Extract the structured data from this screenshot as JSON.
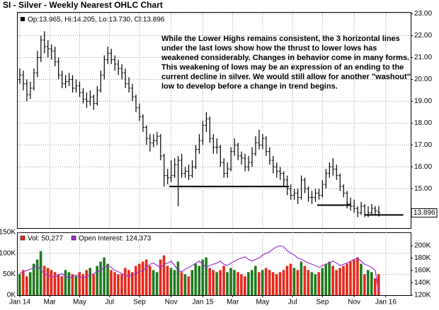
{
  "chart_data": [
    {
      "type": "ohlc",
      "title": "SI - Silver - Weekly Nearest OHLC Chart",
      "info": "Op:13.965, Hi:14.205, Lo:13.730, Cl:13.896",
      "color": "#000000",
      "open": [
        20.0,
        20.2,
        19.8,
        19.3,
        19.6,
        20.3,
        21.0,
        21.8,
        21.5,
        21.4,
        21.3,
        20.8,
        20.2,
        19.8,
        19.9,
        20.0,
        19.6,
        19.7,
        19.4,
        19.1,
        19.0,
        19.2,
        18.9,
        19.5,
        20.2,
        20.9,
        21.2,
        20.9,
        20.7,
        20.5,
        20.3,
        19.8,
        19.6,
        19.2,
        18.7,
        18.3,
        17.8,
        17.3,
        17.1,
        17.2,
        17.4,
        16.5,
        15.6,
        15.5,
        15.6,
        16.1,
        16.3,
        15.7,
        15.8,
        15.6,
        16.0,
        16.8,
        17.2,
        17.9,
        18.2,
        17.3,
        16.9,
        16.9,
        16.2,
        15.7,
        15.9,
        16.7,
        17.0,
        16.5,
        16.4,
        16.0,
        16.2,
        16.6,
        17.1,
        17.0,
        17.3,
        16.7,
        16.3,
        16.0,
        15.8,
        15.7,
        15.4,
        15.0,
        14.7,
        14.8,
        14.6,
        15.4,
        15.0,
        14.6,
        14.6,
        14.8,
        14.7,
        15.2,
        15.7,
        16.0,
        15.9,
        15.6,
        15.1,
        14.8,
        14.3,
        14.2,
        14.1,
        13.9,
        14.2,
        13.8,
        13.9,
        14.1,
        13.965
      ],
      "high": [
        20.5,
        20.4,
        20.0,
        19.9,
        20.5,
        21.3,
        22.0,
        22.2,
        21.8,
        21.6,
        21.5,
        21.0,
        20.4,
        20.2,
        20.3,
        20.2,
        20.0,
        19.9,
        19.6,
        19.4,
        19.5,
        19.3,
        19.7,
        20.4,
        21.1,
        21.5,
        21.4,
        21.1,
        20.9,
        20.7,
        20.5,
        20.1,
        19.8,
        19.3,
        18.9,
        18.4,
        17.9,
        17.5,
        17.5,
        17.6,
        17.5,
        16.6,
        15.9,
        16.3,
        16.4,
        16.5,
        16.6,
        16.0,
        16.1,
        16.3,
        17.0,
        17.5,
        18.1,
        18.5,
        18.3,
        17.5,
        17.3,
        17.0,
        16.4,
        16.2,
        16.9,
        17.3,
        17.1,
        16.7,
        16.6,
        16.5,
        16.9,
        17.4,
        17.7,
        17.5,
        17.4,
        16.9,
        16.5,
        16.2,
        16.0,
        15.8,
        15.6,
        15.2,
        15.0,
        15.0,
        15.6,
        15.5,
        15.1,
        14.9,
        15.0,
        15.0,
        15.4,
        15.9,
        16.2,
        16.4,
        16.1,
        15.7,
        15.2,
        14.9,
        14.6,
        14.5,
        14.2,
        14.4,
        14.3,
        14.2,
        14.3,
        14.2,
        14.205
      ],
      "low": [
        19.8,
        19.5,
        19.0,
        19.1,
        19.5,
        20.1,
        20.8,
        21.2,
        21.0,
        20.9,
        20.6,
        20.0,
        19.6,
        19.6,
        19.7,
        19.4,
        19.4,
        19.2,
        18.9,
        18.7,
        18.8,
        18.6,
        18.8,
        19.4,
        20.0,
        20.7,
        20.7,
        20.4,
        20.2,
        20.0,
        19.6,
        19.4,
        19.0,
        18.5,
        18.1,
        17.6,
        17.0,
        16.7,
        16.9,
        17.0,
        16.3,
        15.1,
        15.2,
        15.3,
        15.5,
        14.2,
        15.5,
        15.5,
        15.4,
        15.5,
        15.9,
        16.6,
        17.0,
        17.6,
        17.1,
        16.6,
        16.6,
        16.0,
        15.5,
        15.5,
        15.8,
        16.5,
        16.3,
        16.1,
        15.8,
        15.8,
        16.0,
        16.5,
        16.8,
        16.8,
        16.5,
        16.1,
        15.7,
        15.5,
        15.4,
        15.1,
        14.7,
        14.5,
        14.5,
        14.3,
        14.5,
        14.8,
        14.4,
        14.3,
        14.4,
        14.5,
        14.6,
        15.0,
        15.5,
        15.6,
        15.4,
        14.9,
        14.6,
        14.1,
        14.0,
        13.9,
        13.7,
        13.8,
        13.7,
        13.7,
        13.8,
        13.8,
        13.73
      ],
      "close": [
        20.2,
        19.8,
        19.3,
        19.6,
        20.3,
        21.0,
        21.8,
        21.5,
        21.4,
        21.3,
        20.8,
        20.2,
        19.8,
        19.9,
        20.0,
        19.6,
        19.7,
        19.4,
        19.1,
        19.0,
        19.2,
        18.9,
        19.5,
        20.2,
        20.9,
        21.2,
        20.9,
        20.7,
        20.5,
        20.3,
        19.8,
        19.6,
        19.2,
        18.7,
        18.3,
        17.8,
        17.3,
        17.1,
        17.2,
        17.4,
        16.5,
        15.6,
        15.5,
        15.6,
        16.1,
        16.3,
        15.7,
        15.8,
        15.6,
        16.0,
        16.8,
        17.2,
        17.9,
        18.2,
        17.3,
        16.9,
        16.9,
        16.2,
        15.7,
        15.9,
        16.7,
        17.0,
        16.5,
        16.4,
        16.0,
        16.2,
        16.6,
        17.1,
        17.0,
        17.3,
        16.7,
        16.3,
        16.0,
        15.8,
        15.7,
        15.4,
        15.0,
        14.7,
        14.8,
        14.6,
        15.4,
        15.0,
        14.6,
        14.6,
        14.8,
        14.7,
        15.2,
        15.7,
        16.0,
        15.9,
        15.6,
        15.1,
        14.8,
        14.3,
        14.2,
        14.1,
        13.9,
        14.2,
        13.8,
        13.9,
        14.1,
        14.0,
        13.896
      ],
      "last_price": 13.896,
      "support_lines": [
        {
          "value": 15.1,
          "start": 42.5,
          "end": 76.5
        },
        {
          "value": 14.25,
          "start": 84.5,
          "end": 94
        },
        {
          "value": 13.8,
          "start": 98,
          "end": 109
        }
      ],
      "annotation": [
        "While the Lower Highs remains consistent, the 3 horizontal lines",
        "under the last lows show how the thrust to lower lows has",
        "weakened considerably.  Changes in behavior come in many forms.",
        "This weakening of lows may be an expression of an ending to the",
        "current decline in silver.  We would still allow for another \"washout\"",
        "low to develop before a change in trend begins."
      ],
      "ylim": [
        13.2,
        23.05
      ],
      "yticks": [
        {
          "value": 15,
          "label": "15.00"
        },
        {
          "value": 16,
          "label": "16.00"
        },
        {
          "value": 17,
          "label": "17.00"
        },
        {
          "value": 18,
          "label": "18.00"
        },
        {
          "value": 19,
          "label": "19.00"
        },
        {
          "value": 20,
          "label": "20.00"
        },
        {
          "value": 21,
          "label": "21.00"
        },
        {
          "value": 22,
          "label": "22.00"
        },
        {
          "value": 23,
          "label": "23.00"
        }
      ],
      "grid": true
    },
    {
      "type": "volume",
      "series": [
        {
          "name": "Vol",
          "legend_label": "Vol: 50,277",
          "color": "#e8281c",
          "up_color": "#1f7a1f",
          "values": [
            50000,
            60000,
            45000,
            55000,
            75000,
            85000,
            105000,
            70000,
            65000,
            60000,
            55000,
            50000,
            45000,
            60000,
            55000,
            50000,
            45000,
            55000,
            50000,
            60000,
            65000,
            50000,
            70000,
            80000,
            90000,
            75000,
            60000,
            55000,
            50000,
            50000,
            65000,
            60000,
            55000,
            70000,
            75000,
            80000,
            85000,
            70000,
            60000,
            55000,
            85000,
            95000,
            70000,
            65000,
            60000,
            80000,
            55000,
            50000,
            45000,
            60000,
            75000,
            70000,
            85000,
            90000,
            65000,
            60000,
            55000,
            60000,
            70000,
            55000,
            65000,
            60000,
            55000,
            50000,
            45000,
            55000,
            60000,
            70000,
            55000,
            60000,
            65000,
            60000,
            55000,
            50000,
            55000,
            60000,
            70000,
            75000,
            65000,
            60000,
            80000,
            70000,
            60000,
            55000,
            50000,
            55000,
            65000,
            75000,
            80000,
            70000,
            60000,
            65000,
            70000,
            75000,
            80000,
            85000,
            90000,
            75000,
            50000,
            60000,
            55000,
            40000,
            50277
          ]
        },
        {
          "name": "Open Interest",
          "legend_label": "Open Interest: 124,373",
          "color": "#9b30d9",
          "axis": "y2",
          "values": [
            155000,
            158000,
            160000,
            162000,
            165000,
            168000,
            160000,
            155000,
            152000,
            150000,
            150000,
            152000,
            155000,
            150000,
            148000,
            150000,
            152000,
            150000,
            148000,
            150000,
            152000,
            155000,
            158000,
            160000,
            165000,
            168000,
            165000,
            160000,
            158000,
            155000,
            152000,
            150000,
            152000,
            155000,
            158000,
            160000,
            165000,
            170000,
            172000,
            168000,
            165000,
            170000,
            172000,
            175000,
            168000,
            160000,
            158000,
            162000,
            165000,
            168000,
            172000,
            175000,
            170000,
            165000,
            168000,
            170000,
            172000,
            175000,
            170000,
            168000,
            172000,
            175000,
            178000,
            180000,
            182000,
            178000,
            175000,
            178000,
            180000,
            185000,
            188000,
            190000,
            195000,
            198000,
            200000,
            198000,
            192000,
            188000,
            185000,
            180000,
            178000,
            175000,
            172000,
            170000,
            168000,
            165000,
            168000,
            170000,
            172000,
            175000,
            172000,
            168000,
            170000,
            172000,
            175000,
            178000,
            180000,
            175000,
            170000,
            168000,
            165000,
            160000,
            124373
          ]
        }
      ],
      "ylim": [
        0,
        150000
      ],
      "yticks": [
        {
          "value": 0,
          "label": "0K"
        },
        {
          "value": 50000,
          "label": "50K"
        },
        {
          "value": 100000,
          "label": "100K"
        },
        {
          "value": 150000,
          "label": "150K"
        }
      ],
      "y2lim": [
        120000,
        221700
      ],
      "y2ticks": [
        {
          "value": 120000,
          "label": "120K"
        },
        {
          "value": 140000,
          "label": "140K"
        },
        {
          "value": 160000,
          "label": "160K"
        },
        {
          "value": 180000,
          "label": "180K"
        },
        {
          "value": 200000,
          "label": "200K"
        }
      ],
      "xticks": [
        {
          "value": 0,
          "label": "Jan 14"
        },
        {
          "value": 8.5,
          "label": "Mar"
        },
        {
          "value": 17,
          "label": "May"
        },
        {
          "value": 25.5,
          "label": "Jul"
        },
        {
          "value": 34,
          "label": "Sep"
        },
        {
          "value": 43,
          "label": "Nov"
        },
        {
          "value": 52,
          "label": "Jan 15"
        },
        {
          "value": 60.5,
          "label": "Mar"
        },
        {
          "value": 69,
          "label": "May"
        },
        {
          "value": 77.5,
          "label": "Jul"
        },
        {
          "value": 86,
          "label": "Sep"
        },
        {
          "value": 95,
          "label": "Nov"
        },
        {
          "value": 104,
          "label": "Jan 16"
        }
      ],
      "grid": true
    }
  ]
}
